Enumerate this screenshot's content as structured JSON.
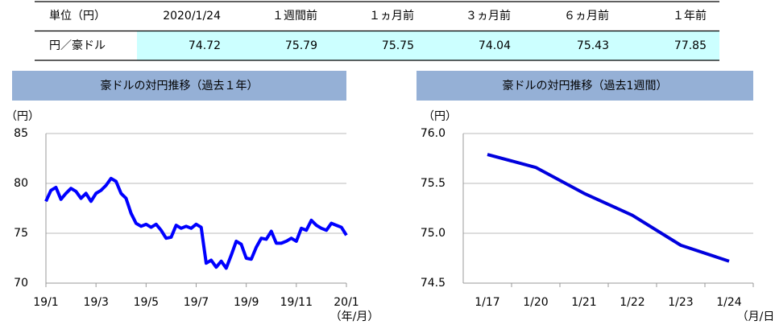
{
  "table": {
    "header": [
      "単位（円）",
      "2020/1/24",
      "１週間前",
      "１ヵ月前",
      "３ヵ月前",
      "６ヵ月前",
      "１年前"
    ],
    "rows": [
      [
        "円／豪ドル",
        74.72,
        75.79,
        75.75,
        74.04,
        75.43,
        77.85
      ]
    ]
  },
  "chart_data": [
    {
      "type": "line",
      "title": "豪ドルの対円推移（過去１年）",
      "y_label": "（円）",
      "x_label": "（年/月）",
      "color": "#0000ff",
      "x": [
        0,
        0.2,
        0.4,
        0.6,
        0.8,
        1,
        1.2,
        1.4,
        1.6,
        1.8,
        2,
        2.2,
        2.4,
        2.6,
        2.8,
        3,
        3.2,
        3.4,
        3.6,
        3.8,
        4,
        4.2,
        4.4,
        4.6,
        4.8,
        5,
        5.2,
        5.4,
        5.6,
        5.8,
        6,
        6.2,
        6.4,
        6.6,
        6.8,
        7,
        7.2,
        7.4,
        7.6,
        7.8,
        8,
        8.2,
        8.4,
        8.6,
        8.8,
        9,
        9.2,
        9.4,
        9.6,
        9.8,
        10,
        10.2,
        10.4,
        10.6,
        10.8,
        11,
        11.2,
        11.4,
        11.6,
        11.8,
        12
      ],
      "values": [
        78.2,
        79.3,
        79.6,
        78.4,
        79.0,
        79.5,
        79.2,
        78.5,
        79.0,
        78.2,
        79.0,
        79.3,
        79.8,
        80.5,
        80.2,
        79.0,
        78.5,
        77.0,
        76.0,
        75.7,
        75.9,
        75.6,
        75.9,
        75.3,
        74.5,
        74.6,
        75.8,
        75.5,
        75.7,
        75.5,
        75.9,
        75.6,
        72.0,
        72.3,
        71.6,
        72.2,
        71.5,
        72.8,
        74.2,
        73.9,
        72.5,
        72.4,
        73.6,
        74.5,
        74.4,
        75.2,
        74.0,
        74.0,
        74.2,
        74.5,
        74.2,
        75.5,
        75.3,
        76.3,
        75.8,
        75.5,
        75.3,
        76.0,
        75.8,
        75.6,
        74.8
      ],
      "xlim": [
        0,
        12
      ],
      "xticks": [
        {
          "value": 0,
          "label": "19/1"
        },
        {
          "value": 2,
          "label": "19/3"
        },
        {
          "value": 4,
          "label": "19/5"
        },
        {
          "value": 6,
          "label": "19/7"
        },
        {
          "value": 8,
          "label": "19/9"
        },
        {
          "value": 10,
          "label": "19/11"
        },
        {
          "value": 12,
          "label": "20/1"
        }
      ],
      "ylim": [
        70,
        85
      ],
      "yticks": [
        70,
        75,
        80,
        85
      ],
      "grid": true
    },
    {
      "type": "line",
      "title": "豪ドルの対円推移（過去1週間）",
      "y_label": "（円）",
      "x_label": "（月/日）",
      "color": "#0000dd",
      "categories": [
        "1/17",
        "1/20",
        "1/21",
        "1/22",
        "1/23",
        "1/24"
      ],
      "values": [
        75.79,
        75.66,
        75.4,
        75.18,
        74.88,
        74.72
      ],
      "ylim": [
        74.5,
        76.0
      ],
      "yticks": [
        {
          "value": 74.5,
          "label": "74.5"
        },
        {
          "value": 75.0,
          "label": "75.0"
        },
        {
          "value": 75.5,
          "label": "75.5"
        },
        {
          "value": 76.0,
          "label": "76.0"
        }
      ],
      "grid": true
    }
  ]
}
